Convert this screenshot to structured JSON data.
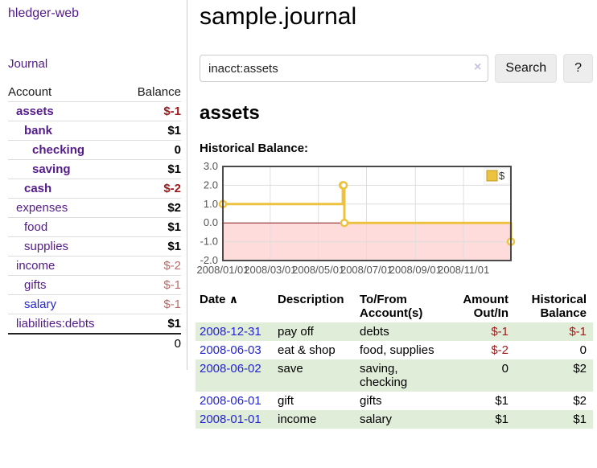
{
  "sidebar": {
    "app_title": "hledger-web",
    "nav": {
      "journal": "Journal"
    },
    "table": {
      "account_header": "Account",
      "balance_header": "Balance",
      "rows": [
        {
          "account": "assets",
          "indent": 1,
          "bold": true,
          "balance": "$-1",
          "balance_style": "neg",
          "link_style": "purple"
        },
        {
          "account": "bank",
          "indent": 2,
          "bold": true,
          "balance": "$1",
          "balance_style": "pos",
          "link_style": "purple"
        },
        {
          "account": "checking",
          "indent": 3,
          "bold": true,
          "balance": "0",
          "balance_style": "pos",
          "link_style": "purple"
        },
        {
          "account": "saving",
          "indent": 3,
          "bold": true,
          "balance": "$1",
          "balance_style": "pos",
          "link_style": "purple"
        },
        {
          "account": "cash",
          "indent": 2,
          "bold": true,
          "balance": "$-2",
          "balance_style": "neg",
          "link_style": "purple"
        },
        {
          "account": "expenses",
          "indent": 1,
          "bold": false,
          "balance": "$2",
          "balance_style": "pos",
          "link_style": "purple"
        },
        {
          "account": "food",
          "indent": 2,
          "bold": false,
          "balance": "$1",
          "balance_style": "pos",
          "link_style": "purple"
        },
        {
          "account": "supplies",
          "indent": 2,
          "bold": false,
          "balance": "$1",
          "balance_style": "pos",
          "link_style": "purple"
        },
        {
          "account": "income",
          "indent": 1,
          "bold": false,
          "balance": "$-2",
          "balance_style": "negsoft",
          "link_style": "purple"
        },
        {
          "account": "gifts",
          "indent": 2,
          "bold": false,
          "balance": "$-1",
          "balance_style": "negsoft",
          "link_style": "purple"
        },
        {
          "account": "salary",
          "indent": 2,
          "bold": false,
          "balance": "$-1",
          "balance_style": "negsoft",
          "link_style": "blue"
        },
        {
          "account": "liabilities:debts",
          "indent": 1,
          "bold": false,
          "balance": "$1",
          "balance_style": "pos",
          "link_style": "purple"
        }
      ],
      "total": "0"
    }
  },
  "main": {
    "title": "sample.journal",
    "search": {
      "value": "inacct:assets",
      "clear_icon": "×",
      "search_button": "Search",
      "help_button": "?"
    },
    "account_heading": "assets",
    "chart_heading": "Historical Balance:"
  },
  "chart_data": {
    "type": "line",
    "step": true,
    "title": "Historical Balance",
    "series": [
      {
        "name": "$",
        "color": "#edc240",
        "points": [
          [
            "2008-01-01",
            1
          ],
          [
            "2008-06-01",
            2
          ],
          [
            "2008-06-02",
            2
          ],
          [
            "2008-06-03",
            0
          ],
          [
            "2008-12-31",
            -1
          ]
        ]
      }
    ],
    "xlim": [
      "2008-01-01",
      "2008-12-31"
    ],
    "ylim": [
      -2,
      3
    ],
    "x_ticks": [
      "2008/01/01",
      "2008/03/01",
      "2008/05/01",
      "2008/07/01",
      "2008/09/01",
      "2008/11/01"
    ],
    "y_ticks": [
      "3.0",
      "2.0",
      "1.0",
      "0.0",
      "-1.0",
      "-2.0"
    ],
    "grid": true,
    "legend_position": "top-right",
    "grid_color": "#dedede",
    "tick_label_color": "#545454",
    "negative_fill": "#ffdcdc",
    "zero_line_color": "#8a1f1f",
    "plot_border_color": "#4a4a4a",
    "marker_fill": "#ffffff"
  },
  "register": {
    "columns": {
      "date": "Date",
      "sort_icon": "∧",
      "description": "Description",
      "accounts": "To/From Account(s)",
      "amount": "Amount Out/In",
      "balance": "Historical Balance"
    },
    "rows": [
      {
        "date": "2008-12-31",
        "description": "pay off",
        "accounts": "debts",
        "amount": "$-1",
        "amount_neg": true,
        "balance": "$-1",
        "balance_neg": true,
        "shaded": true
      },
      {
        "date": "2008-06-03",
        "description": "eat & shop",
        "accounts": "food, supplies",
        "amount": "$-2",
        "amount_neg": true,
        "balance": "0",
        "balance_neg": false,
        "shaded": false
      },
      {
        "date": "2008-06-02",
        "description": "save",
        "accounts": "saving, checking",
        "amount": "0",
        "amount_neg": false,
        "balance": "$2",
        "balance_neg": false,
        "shaded": true
      },
      {
        "date": "2008-06-01",
        "description": "gift",
        "accounts": "gifts",
        "amount": "$1",
        "amount_neg": false,
        "balance": "$2",
        "balance_neg": false,
        "shaded": false
      },
      {
        "date": "2008-01-01",
        "description": "income",
        "accounts": "salary",
        "amount": "$1",
        "amount_neg": false,
        "balance": "$1",
        "balance_neg": false,
        "shaded": true
      }
    ]
  }
}
